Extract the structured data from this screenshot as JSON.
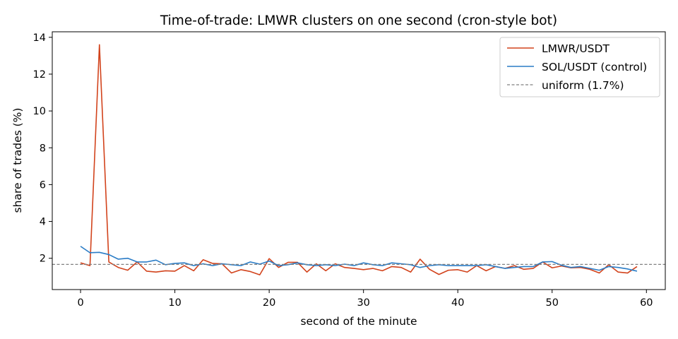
{
  "chart_data": {
    "type": "line",
    "title": "Time-of-trade: LMWR clusters on one second (cron-style bot)",
    "xlabel": "second of the minute",
    "ylabel": "share of trades (%)",
    "xlim": [
      -3,
      62
    ],
    "ylim": [
      0.3,
      14.3
    ],
    "xticks": [
      0,
      10,
      20,
      30,
      40,
      50,
      60
    ],
    "yticks": [
      2,
      4,
      6,
      8,
      10,
      12,
      14
    ],
    "grid": false,
    "legend_position": "top-right",
    "x": [
      0,
      1,
      2,
      3,
      4,
      5,
      6,
      7,
      8,
      9,
      10,
      11,
      12,
      13,
      14,
      15,
      16,
      17,
      18,
      19,
      20,
      21,
      22,
      23,
      24,
      25,
      26,
      27,
      28,
      29,
      30,
      31,
      32,
      33,
      34,
      35,
      36,
      37,
      38,
      39,
      40,
      41,
      42,
      43,
      44,
      45,
      46,
      47,
      48,
      49,
      50,
      51,
      52,
      53,
      54,
      55,
      56,
      57,
      58,
      59
    ],
    "series": [
      {
        "name": "LMWR/USDT",
        "color": "#d2431c",
        "style": "solid",
        "values": [
          1.75,
          1.6,
          13.6,
          1.8,
          1.5,
          1.35,
          1.8,
          1.3,
          1.25,
          1.32,
          1.3,
          1.6,
          1.32,
          1.92,
          1.72,
          1.7,
          1.2,
          1.38,
          1.28,
          1.1,
          1.98,
          1.5,
          1.78,
          1.78,
          1.25,
          1.7,
          1.32,
          1.7,
          1.5,
          1.45,
          1.38,
          1.45,
          1.32,
          1.55,
          1.5,
          1.25,
          1.95,
          1.4,
          1.12,
          1.35,
          1.38,
          1.25,
          1.6,
          1.32,
          1.55,
          1.45,
          1.6,
          1.4,
          1.45,
          1.8,
          1.48,
          1.58,
          1.48,
          1.5,
          1.4,
          1.2,
          1.65,
          1.25,
          1.2,
          1.55
        ]
      },
      {
        "name": "SOL/USDT (control)",
        "color": "#2a7cc6",
        "style": "solid",
        "values": [
          2.65,
          2.3,
          2.32,
          2.2,
          1.95,
          2.0,
          1.8,
          1.8,
          1.9,
          1.65,
          1.72,
          1.75,
          1.6,
          1.7,
          1.6,
          1.7,
          1.65,
          1.6,
          1.8,
          1.68,
          1.85,
          1.6,
          1.65,
          1.75,
          1.65,
          1.6,
          1.65,
          1.6,
          1.68,
          1.6,
          1.75,
          1.65,
          1.6,
          1.75,
          1.7,
          1.65,
          1.5,
          1.6,
          1.65,
          1.6,
          1.6,
          1.6,
          1.6,
          1.65,
          1.55,
          1.45,
          1.5,
          1.55,
          1.55,
          1.8,
          1.82,
          1.62,
          1.5,
          1.55,
          1.45,
          1.35,
          1.55,
          1.5,
          1.42,
          1.3
        ]
      },
      {
        "name": "uniform (1.7%)",
        "color": "#808080",
        "style": "dashed",
        "constant": 1.6667
      }
    ]
  }
}
